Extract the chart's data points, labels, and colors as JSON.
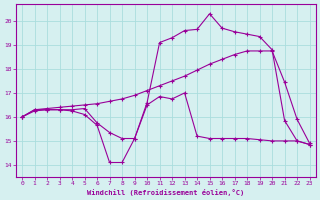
{
  "xlabel": "Windchill (Refroidissement éolien,°C)",
  "background_color": "#d6f0f0",
  "grid_color": "#aadddd",
  "line_color": "#990099",
  "xlim": [
    -0.5,
    23.5
  ],
  "ylim": [
    13.5,
    20.7
  ],
  "xticks": [
    0,
    1,
    2,
    3,
    4,
    5,
    6,
    7,
    8,
    9,
    10,
    11,
    12,
    13,
    14,
    15,
    16,
    17,
    18,
    19,
    20,
    21,
    22,
    23
  ],
  "yticks": [
    14,
    15,
    16,
    17,
    18,
    19,
    20
  ],
  "series1_x": [
    0,
    1,
    2,
    3,
    4,
    5,
    6,
    7,
    8,
    9,
    10,
    11,
    12,
    13,
    14,
    15,
    16,
    17,
    18,
    19,
    20,
    21,
    22,
    23
  ],
  "series1_y": [
    16.0,
    16.3,
    16.35,
    16.4,
    16.45,
    16.5,
    16.55,
    16.65,
    16.75,
    16.9,
    17.1,
    17.3,
    17.5,
    17.7,
    17.95,
    18.2,
    18.4,
    18.6,
    18.75,
    18.75,
    18.75,
    17.45,
    15.9,
    14.9
  ],
  "series2_x": [
    0,
    1,
    2,
    3,
    4,
    5,
    6,
    7,
    8,
    9,
    10,
    11,
    12,
    13,
    14,
    15,
    16,
    17,
    18,
    19,
    20,
    21,
    22,
    23
  ],
  "series2_y": [
    16.0,
    16.3,
    16.3,
    16.3,
    16.3,
    16.35,
    15.75,
    15.35,
    15.1,
    15.1,
    16.6,
    19.1,
    19.3,
    19.6,
    19.65,
    20.3,
    19.7,
    19.55,
    19.45,
    19.35,
    18.8,
    15.85,
    15.0,
    14.85
  ],
  "series3_x": [
    0,
    1,
    2,
    3,
    4,
    5,
    6,
    7,
    8,
    9,
    10,
    11,
    12,
    13,
    14,
    15,
    16,
    17,
    18,
    19,
    20,
    21,
    22,
    23
  ],
  "series3_y": [
    16.0,
    16.25,
    16.3,
    16.3,
    16.25,
    16.1,
    15.65,
    14.1,
    14.1,
    15.1,
    16.5,
    16.85,
    16.75,
    17.0,
    15.2,
    15.1,
    15.1,
    15.1,
    15.1,
    15.05,
    15.0,
    15.0,
    15.0,
    14.85
  ]
}
